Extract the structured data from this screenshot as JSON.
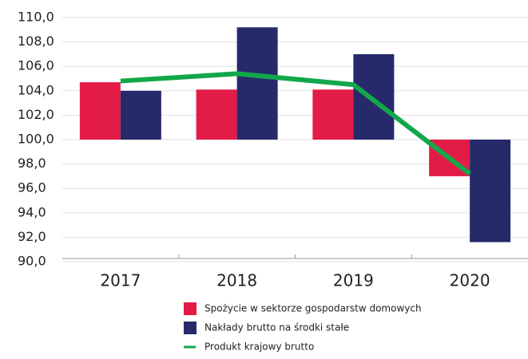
{
  "chart_data": {
    "type": "bar",
    "categories": [
      "2017",
      "2018",
      "2019",
      "2020"
    ],
    "baseline": 100,
    "series": [
      {
        "name": "Spożycie w sektorze gospodarstw domowych",
        "type": "bar",
        "color": "#e31b47",
        "values": [
          104.7,
          104.1,
          104.1,
          97.0
        ]
      },
      {
        "name": "Nakłady brutto na środki stałe",
        "type": "bar",
        "color": "#262a6b",
        "values": [
          104.0,
          109.2,
          107.0,
          91.6
        ]
      },
      {
        "name": "Produkt krajowy brutto",
        "type": "line",
        "color": "#12a84a",
        "values": [
          104.8,
          105.4,
          104.5,
          97.2
        ]
      }
    ],
    "ylim": [
      90,
      110
    ],
    "yticks": [
      {
        "value": 90,
        "label": "90,0"
      },
      {
        "value": 92,
        "label": "92,0"
      },
      {
        "value": 94,
        "label": "94,0"
      },
      {
        "value": 96,
        "label": "96,0"
      },
      {
        "value": 98,
        "label": "98,0"
      },
      {
        "value": 100,
        "label": "100,0"
      },
      {
        "value": 102,
        "label": "102,0"
      },
      {
        "value": 104,
        "label": "104,0"
      },
      {
        "value": 106,
        "label": "106,0"
      },
      {
        "value": 108,
        "label": "108,0"
      },
      {
        "value": 110,
        "label": "110,0"
      }
    ],
    "grid": true
  }
}
